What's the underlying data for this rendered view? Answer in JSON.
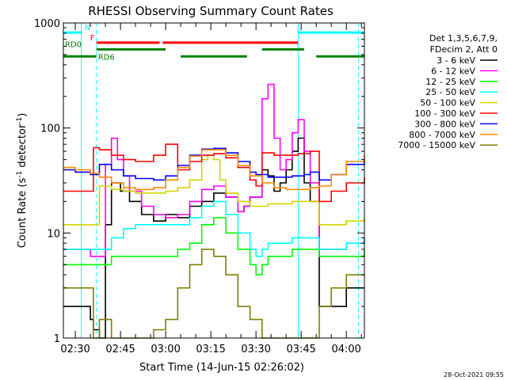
{
  "chart_data": {
    "type": "line",
    "title": "RHESSI Observing Summary Count Rates",
    "xlabel": "Start Time (14-Jun-15 02:26:02)",
    "ylabel_main": "Count Rate (s",
    "ylabel_sup": "-1",
    "ylabel_mid": " detector",
    "ylabel_sup2": "-1",
    "ylabel_end": ")",
    "yscale": "log",
    "ylim": [
      1,
      1000
    ],
    "xlim_min": [
      146.033,
      246
    ],
    "y_ticks": [
      {
        "v": 1,
        "label": "1"
      },
      {
        "v": 10,
        "label": "10"
      },
      {
        "v": 100,
        "label": "100"
      },
      {
        "v": 1000,
        "label": "1000"
      }
    ],
    "x_ticks": [
      {
        "v": 150,
        "label": "02:30"
      },
      {
        "v": 165,
        "label": "02:45"
      },
      {
        "v": 180,
        "label": "03:00"
      },
      {
        "v": 195,
        "label": "03:15"
      },
      {
        "v": 210,
        "label": "03:30"
      },
      {
        "v": 225,
        "label": "03:45"
      },
      {
        "v": 240,
        "label": "04:00"
      }
    ],
    "legend_header": [
      "Det 1,3,5,6,7,9,",
      "FDecim 2, Att 0"
    ],
    "series": [
      {
        "name": "3 - 6 keV",
        "color": "#000000",
        "t": [
          146,
          150,
          152,
          155,
          156,
          158,
          160,
          162,
          165,
          168,
          172,
          176,
          180,
          184,
          188,
          192,
          196,
          200,
          204,
          206,
          208,
          212,
          214,
          216,
          218,
          220,
          222,
          224,
          226,
          228,
          231,
          235,
          240,
          243,
          246
        ],
        "v": [
          2,
          2,
          2,
          1.5,
          1.2,
          1,
          12,
          30,
          25,
          20,
          15,
          13,
          15,
          14,
          18,
          20,
          24,
          22,
          16,
          18,
          22,
          40,
          35,
          25,
          30,
          40,
          60,
          80,
          30,
          20,
          2,
          2,
          3,
          3,
          3
        ]
      },
      {
        "name": "6 - 12 keV",
        "color": "#ff00ff",
        "t": [
          146,
          150,
          155,
          156,
          158,
          160,
          162,
          164,
          166,
          168,
          172,
          176,
          180,
          184,
          188,
          192,
          196,
          200,
          204,
          206,
          208,
          212,
          214,
          216,
          218,
          220,
          222,
          224,
          226,
          228,
          231,
          235,
          240,
          246
        ],
        "v": [
          7,
          7,
          6,
          6,
          6,
          45,
          80,
          50,
          35,
          25,
          18,
          15,
          14,
          15,
          20,
          26,
          28,
          22,
          16,
          18,
          22,
          190,
          260,
          80,
          40,
          50,
          90,
          120,
          60,
          30,
          7,
          7,
          8,
          9
        ]
      },
      {
        "name": "12 - 25 keV",
        "color": "#00ff00",
        "t": [
          146,
          150,
          155,
          156,
          158,
          162,
          166,
          170,
          176,
          180,
          184,
          188,
          192,
          196,
          200,
          204,
          208,
          210,
          212,
          214,
          218,
          222,
          226,
          228,
          231,
          235,
          240,
          246
        ],
        "v": [
          5,
          5,
          5,
          5,
          5,
          6,
          6,
          6,
          6,
          6,
          7,
          8,
          12,
          14,
          10,
          7,
          5,
          4,
          5,
          6,
          6,
          7,
          7,
          7,
          6,
          6,
          6,
          7
        ]
      },
      {
        "name": "25 - 50 keV",
        "color": "#00ffff",
        "t": [
          146,
          150,
          155,
          156,
          158,
          162,
          166,
          170,
          176,
          180,
          184,
          188,
          192,
          196,
          200,
          204,
          208,
          210,
          212,
          214,
          218,
          222,
          226,
          228,
          231,
          235,
          240,
          246
        ],
        "v": [
          7,
          7,
          7,
          7,
          7,
          9,
          11,
          12,
          12,
          12,
          12,
          14,
          18,
          20,
          15,
          10,
          7,
          6,
          7,
          8,
          8,
          9,
          9,
          9,
          7,
          7,
          8,
          9
        ]
      },
      {
        "name": "50 - 100 keV",
        "color": "#d4d400",
        "t": [
          146,
          150,
          155,
          156,
          158,
          162,
          166,
          170,
          176,
          180,
          184,
          188,
          192,
          194,
          196,
          198,
          200,
          204,
          208,
          210,
          212,
          214,
          218,
          222,
          226,
          228,
          231,
          235,
          240,
          246
        ],
        "v": [
          12,
          12,
          12,
          12,
          28,
          26,
          25,
          24,
          24,
          25,
          27,
          32,
          50,
          55,
          50,
          32,
          24,
          20,
          18,
          18,
          18,
          19,
          19,
          20,
          20,
          20,
          12,
          12,
          13,
          14
        ]
      },
      {
        "name": "100 - 300 keV",
        "color": "#ff0000",
        "t": [
          146,
          150,
          155,
          156,
          158,
          162,
          166,
          170,
          176,
          180,
          184,
          188,
          192,
          196,
          200,
          204,
          208,
          210,
          212,
          216,
          220,
          224,
          228,
          231,
          235,
          240,
          246
        ],
        "v": [
          25,
          25,
          25,
          65,
          62,
          55,
          50,
          48,
          55,
          70,
          40,
          48,
          55,
          57,
          52,
          42,
          32,
          28,
          58,
          55,
          55,
          57,
          60,
          20,
          25,
          30,
          34
        ]
      },
      {
        "name": "300 - 800 keV",
        "color": "#0000ff",
        "t": [
          146,
          150,
          155,
          158,
          162,
          166,
          170,
          176,
          180,
          184,
          188,
          192,
          196,
          200,
          204,
          208,
          210,
          214,
          218,
          222,
          226,
          228,
          231,
          235,
          240,
          246
        ],
        "v": [
          40,
          38,
          36,
          45,
          40,
          35,
          33,
          32,
          35,
          44,
          55,
          63,
          64,
          58,
          48,
          38,
          36,
          34,
          34,
          35,
          36,
          38,
          32,
          36,
          45,
          50
        ]
      },
      {
        "name": "800 - 7000 keV",
        "color": "#ff8800",
        "t": [
          146,
          150,
          155,
          158,
          162,
          166,
          170,
          176,
          180,
          184,
          188,
          192,
          196,
          200,
          204,
          208,
          212,
          216,
          220,
          224,
          228,
          231,
          235,
          240,
          246
        ],
        "v": [
          42,
          40,
          37,
          34,
          30,
          27,
          26,
          27,
          32,
          42,
          54,
          62,
          62,
          55,
          44,
          35,
          30,
          27,
          26,
          26,
          27,
          28,
          36,
          48,
          55
        ]
      },
      {
        "name": "7000 - 15000 keV",
        "color": "#808000",
        "t": [
          146,
          150,
          155,
          156,
          158,
          162,
          166,
          170,
          176,
          180,
          184,
          188,
          192,
          196,
          200,
          204,
          208,
          212,
          216,
          220,
          224,
          228,
          231,
          235,
          240,
          246
        ],
        "v": [
          3,
          3,
          3,
          1,
          1.5,
          1,
          1,
          1,
          1.2,
          1.5,
          3,
          5,
          7,
          6,
          4,
          2,
          1.5,
          1,
          1,
          1,
          1,
          1,
          2,
          3,
          4,
          4
        ]
      }
    ],
    "state_bars": [
      {
        "label": "N",
        "color": "#00ffff",
        "label_color": "#00ffff",
        "y": 810,
        "segments": [
          [
            146.03,
            152
          ],
          [
            224,
            246
          ]
        ]
      },
      {
        "label": "F",
        "color": "#ff0000",
        "label_color": "#ff0000",
        "y": 650,
        "segments": [
          [
            157,
            178
          ],
          [
            179,
            224
          ]
        ]
      },
      {
        "label": "RD0",
        "color": "#008000",
        "label_color": "#008000",
        "y": 560,
        "segments": [
          [
            157,
            180
          ],
          [
            212,
            226
          ]
        ]
      },
      {
        "label": "RD6",
        "color": "#008000",
        "label_color": "#008000",
        "y": 480,
        "segments": [
          [
            146.03,
            157
          ],
          [
            185,
            207
          ],
          [
            230,
            246
          ]
        ]
      }
    ],
    "vlines_solid": [
      152,
      224
    ],
    "vlines_dashed": [
      157,
      244
    ],
    "vline_color": "#00ffff",
    "timestamp": "28-Oct-2021 09:55"
  }
}
